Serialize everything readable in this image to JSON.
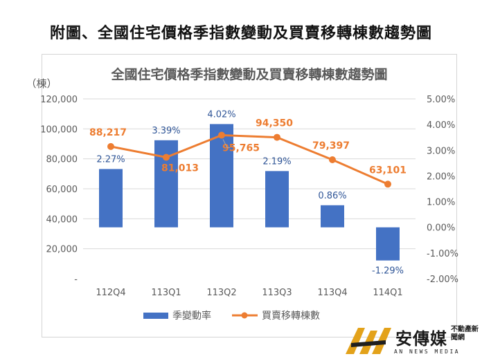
{
  "page_title": "附圖、全國住宅價格季指數變動及買賣移轉棟數趨勢圖",
  "brand": {
    "name": "安傳媒",
    "sub": "不動產新聞網",
    "english": "AN NEWS MEDIA"
  },
  "colors": {
    "bar": "#4472C4",
    "line": "#ED7D31",
    "bar_label": "#2F5597",
    "line_label": "#ED7D31"
  },
  "chart_data": {
    "type": "bar+line",
    "title": "全國住宅價格季指數變動及買賣移轉棟數趨勢圖",
    "y_left_unit": "（棟）",
    "categories": [
      "112Q4",
      "113Q1",
      "113Q2",
      "113Q3",
      "113Q4",
      "114Q1"
    ],
    "series": [
      {
        "name": "季變動率",
        "type": "bar",
        "axis": "right",
        "values": [
          2.27,
          3.39,
          4.02,
          2.19,
          0.86,
          -1.29
        ],
        "labels": [
          "2.27%",
          "3.39%",
          "4.02%",
          "2.19%",
          "0.86%",
          "-1.29%"
        ]
      },
      {
        "name": "買賣移轉棟數",
        "type": "line",
        "axis": "left",
        "values": [
          88217,
          81013,
          95765,
          94350,
          79397,
          63101
        ],
        "labels": [
          "88,217",
          "81,013",
          "95,765",
          "94,350",
          "79,397",
          "63,101"
        ]
      }
    ],
    "y_left": {
      "range": [
        0,
        120000
      ],
      "ticks": [
        120000,
        100000,
        80000,
        60000,
        40000,
        20000,
        0
      ],
      "tick_labels": [
        "120,000",
        "100,000",
        "80,000",
        "60,000",
        "40,000",
        "20,000",
        "-"
      ]
    },
    "y_right": {
      "range": [
        -2,
        5
      ],
      "ticks": [
        5,
        4,
        3,
        2,
        1,
        0,
        -1,
        -2
      ],
      "tick_labels": [
        "5.00%",
        "4.00%",
        "3.00%",
        "2.00%",
        "1.00%",
        "0.00%",
        "-1.00%",
        "-2.00%"
      ]
    },
    "grid": true,
    "legend_position": "bottom"
  }
}
